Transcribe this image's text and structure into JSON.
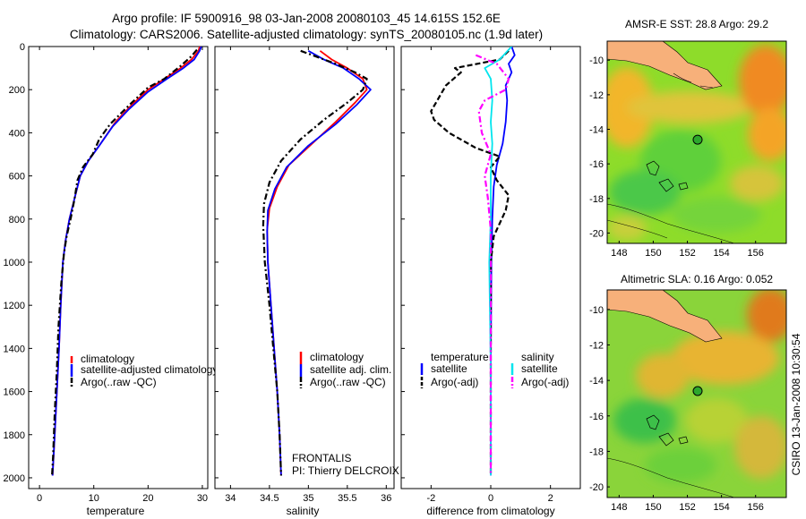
{
  "header": {
    "line1": "Argo profile: IF 5900916_98 03-Jan-2008 20080103_45 14.615S 152.6E",
    "line2": "Climatology: CARS2006. Satellite-adjusted climatology: synTS_20080105.nc (1.9d later)"
  },
  "credit": {
    "project": "FRONTALIS",
    "pi": "PI: Thierry DELCROIX",
    "stamp": "CSIRO 13-Jan-2008 10:30:54"
  },
  "colors": {
    "climatology": "#ff0000",
    "satellite": "#0000ff",
    "argo": "#000000",
    "salinity_satellite": "#00e5ee",
    "salinity_argo": "#ff00ff",
    "land": "#f7b07a"
  },
  "chart_data": [
    {
      "type": "line",
      "id": "temperature",
      "xlabel": "temperature",
      "ylabel": "",
      "xlim": [
        -2,
        31
      ],
      "ylim": [
        2050,
        0
      ],
      "xticks": [
        "0",
        "10",
        "20",
        "30"
      ],
      "yticks": [
        "0",
        "200",
        "400",
        "600",
        "800",
        "1000",
        "1200",
        "1400",
        "1600",
        "1800",
        "2000"
      ],
      "legend_position": "lower-center",
      "legend": [
        "climatology",
        "satellite-adjusted climatology",
        "Argo(..raw -QC)"
      ],
      "series": [
        {
          "name": "climatology",
          "color": "#ff0000",
          "dash": "solid",
          "points": [
            [
              29.5,
              0
            ],
            [
              29.3,
              20
            ],
            [
              28,
              60
            ],
            [
              26,
              100
            ],
            [
              23,
              150
            ],
            [
              20,
              200
            ],
            [
              17,
              270
            ],
            [
              14,
              350
            ],
            [
              11,
              460
            ],
            [
              9,
              530
            ],
            [
              7.5,
              600
            ],
            [
              6.5,
              700
            ],
            [
              5.5,
              800
            ],
            [
              4.8,
              900
            ],
            [
              4.3,
              1000
            ],
            [
              3.9,
              1200
            ],
            [
              3.6,
              1400
            ],
            [
              3.2,
              1600
            ],
            [
              2.8,
              1800
            ],
            [
              2.4,
              1990
            ]
          ]
        },
        {
          "name": "satellite-adjusted climatology",
          "color": "#0000ff",
          "dash": "solid",
          "points": [
            [
              29.8,
              0
            ],
            [
              29.5,
              20
            ],
            [
              28.5,
              60
            ],
            [
              26.5,
              100
            ],
            [
              23.5,
              150
            ],
            [
              20,
              210
            ],
            [
              16.5,
              290
            ],
            [
              13.5,
              370
            ],
            [
              11,
              460
            ],
            [
              9,
              530
            ],
            [
              7.5,
              600
            ],
            [
              6.5,
              700
            ],
            [
              5.5,
              800
            ],
            [
              4.8,
              900
            ],
            [
              4.3,
              1000
            ],
            [
              3.9,
              1200
            ],
            [
              3.6,
              1400
            ],
            [
              3.2,
              1600
            ],
            [
              2.8,
              1800
            ],
            [
              2.4,
              1990
            ]
          ]
        },
        {
          "name": "Argo(..raw -QC)",
          "color": "#000000",
          "dash": "dashdot",
          "points": [
            [
              29,
              15
            ],
            [
              28,
              45
            ],
            [
              26,
              90
            ],
            [
              23,
              150
            ],
            [
              20,
              190
            ],
            [
              17,
              260
            ],
            [
              15,
              310
            ],
            [
              13,
              360
            ],
            [
              11,
              430
            ],
            [
              9.8,
              500
            ],
            [
              8,
              560
            ],
            [
              7,
              620
            ],
            [
              6.5,
              700
            ],
            [
              5.8,
              790
            ],
            [
              5,
              880
            ],
            [
              4.5,
              960
            ],
            [
              4,
              1100
            ],
            [
              3.5,
              1300
            ],
            [
              3.2,
              1500
            ],
            [
              2.8,
              1700
            ],
            [
              2.5,
              1900
            ],
            [
              2.3,
              1990
            ]
          ]
        }
      ]
    },
    {
      "type": "line",
      "id": "salinity",
      "xlabel": "salinity",
      "ylabel": "",
      "xlim": [
        33.8,
        36.1
      ],
      "ylim": [
        2050,
        0
      ],
      "xticks": [
        "34",
        "34.5",
        "35",
        "35.5",
        "36"
      ],
      "legend_position": "lower-right",
      "legend": [
        "climatology",
        "satellite adj. clim.",
        "Argo(..raw -QC)"
      ],
      "series": [
        {
          "name": "climatology",
          "color": "#ff0000",
          "dash": "solid",
          "points": [
            [
              35.15,
              20
            ],
            [
              35.3,
              60
            ],
            [
              35.5,
              100
            ],
            [
              35.7,
              150
            ],
            [
              35.75,
              200
            ],
            [
              35.6,
              260
            ],
            [
              35.35,
              350
            ],
            [
              35.05,
              450
            ],
            [
              34.75,
              550
            ],
            [
              34.6,
              650
            ],
            [
              34.5,
              750
            ],
            [
              34.47,
              850
            ],
            [
              34.48,
              1000
            ],
            [
              34.52,
              1200
            ],
            [
              34.56,
              1400
            ],
            [
              34.6,
              1600
            ],
            [
              34.63,
              1800
            ],
            [
              34.65,
              1990
            ]
          ]
        },
        {
          "name": "satellite adj. clim.",
          "color": "#0000ff",
          "dash": "solid",
          "points": [
            [
              35.0,
              20
            ],
            [
              35.2,
              60
            ],
            [
              35.45,
              100
            ],
            [
              35.65,
              150
            ],
            [
              35.8,
              200
            ],
            [
              35.62,
              270
            ],
            [
              35.35,
              360
            ],
            [
              35.0,
              460
            ],
            [
              34.72,
              560
            ],
            [
              34.57,
              660
            ],
            [
              34.48,
              760
            ],
            [
              34.47,
              860
            ],
            [
              34.48,
              1000
            ],
            [
              34.52,
              1200
            ],
            [
              34.56,
              1400
            ],
            [
              34.6,
              1600
            ],
            [
              34.63,
              1800
            ],
            [
              34.65,
              1990
            ]
          ]
        },
        {
          "name": "Argo(..raw -QC)",
          "color": "#000000",
          "dash": "dashdot",
          "points": [
            [
              34.9,
              20
            ],
            [
              35.05,
              40
            ],
            [
              35.35,
              80
            ],
            [
              35.6,
              120
            ],
            [
              35.75,
              150
            ],
            [
              35.7,
              200
            ],
            [
              35.5,
              260
            ],
            [
              35.2,
              340
            ],
            [
              34.9,
              430
            ],
            [
              34.65,
              530
            ],
            [
              34.5,
              630
            ],
            [
              34.43,
              730
            ],
            [
              34.42,
              830
            ],
            [
              34.44,
              1000
            ],
            [
              34.5,
              1200
            ],
            [
              34.55,
              1400
            ],
            [
              34.6,
              1600
            ],
            [
              34.63,
              1800
            ],
            [
              34.65,
              1990
            ]
          ]
        }
      ]
    },
    {
      "type": "line",
      "id": "difference",
      "xlabel": "difference from climatology",
      "ylabel": "",
      "xlim": [
        -3,
        3
      ],
      "ylim": [
        2050,
        0
      ],
      "xticks": [
        "-2",
        "0",
        "2"
      ],
      "legend_position": "lower-center",
      "legend_groups": [
        "temperature",
        "salinity"
      ],
      "legend": [
        "satellite",
        "Argo(-adj)",
        "satellite",
        "Argo(-adj)"
      ],
      "series": [
        {
          "name": "satellite",
          "group": "temperature",
          "color": "#0000ff",
          "dash": "solid",
          "points": [
            [
              0.7,
              0
            ],
            [
              0.8,
              40
            ],
            [
              0.6,
              80
            ],
            [
              0.7,
              120
            ],
            [
              0.5,
              180
            ],
            [
              0.55,
              250
            ],
            [
              0.5,
              350
            ],
            [
              0.4,
              450
            ],
            [
              0.2,
              550
            ],
            [
              0.1,
              650
            ],
            [
              0.05,
              800
            ],
            [
              0.02,
              1000
            ],
            [
              0.0,
              1500
            ],
            [
              0.0,
              1990
            ]
          ]
        },
        {
          "name": "Argo(-adj)",
          "group": "temperature",
          "color": "#000000",
          "dash": "dashed",
          "points": [
            [
              0.6,
              20
            ],
            [
              0.3,
              60
            ],
            [
              -1.2,
              100
            ],
            [
              -1.0,
              120
            ],
            [
              -1.5,
              180
            ],
            [
              -2.0,
              300
            ],
            [
              -1.9,
              340
            ],
            [
              -1.4,
              400
            ],
            [
              -0.5,
              470
            ],
            [
              0.3,
              510
            ],
            [
              0.0,
              560
            ],
            [
              0.2,
              620
            ],
            [
              0.6,
              690
            ],
            [
              0.5,
              760
            ],
            [
              0.1,
              880
            ],
            [
              0.0,
              1000
            ],
            [
              0.0,
              1500
            ],
            [
              0.0,
              1990
            ]
          ]
        },
        {
          "name": "satellite",
          "group": "salinity",
          "color": "#00e5ee",
          "dash": "solid",
          "points": [
            [
              0.7,
              0
            ],
            [
              0.3,
              60
            ],
            [
              -0.2,
              100
            ],
            [
              0.0,
              150
            ],
            [
              0.05,
              250
            ],
            [
              0.0,
              350
            ],
            [
              0.05,
              450
            ],
            [
              0.0,
              600
            ],
            [
              0.0,
              800
            ],
            [
              -0.05,
              1000
            ],
            [
              0.0,
              1500
            ],
            [
              0.0,
              1990
            ]
          ]
        },
        {
          "name": "Argo(-adj)",
          "group": "salinity",
          "color": "#ff00ff",
          "dash": "dashdot",
          "points": [
            [
              -0.5,
              40
            ],
            [
              0.2,
              80
            ],
            [
              0.6,
              150
            ],
            [
              0.5,
              200
            ],
            [
              -0.2,
              250
            ],
            [
              -0.4,
              300
            ],
            [
              -0.3,
              400
            ],
            [
              0.0,
              500
            ],
            [
              -0.2,
              600
            ],
            [
              -0.1,
              700
            ],
            [
              0.0,
              850
            ],
            [
              0.0,
              1000
            ],
            [
              0.0,
              1500
            ],
            [
              0.0,
              1990
            ]
          ]
        }
      ]
    },
    {
      "type": "heatmap",
      "id": "sst",
      "title": "AMSR-E SST: 28.8 Argo: 29.2",
      "xlim": [
        147.3,
        157.8
      ],
      "ylim": [
        -20.6,
        -8.9
      ],
      "xticks": [
        "148",
        "150",
        "152",
        "154",
        "156"
      ],
      "yticks": [
        "-10",
        "-12",
        "-14",
        "-16",
        "-18",
        "-20"
      ],
      "marker": {
        "lon": 152.6,
        "lat": -14.6
      }
    },
    {
      "type": "heatmap",
      "id": "sla",
      "title": "Altimetric SLA: 0.16 Argo: 0.052",
      "xlim": [
        147.3,
        157.8
      ],
      "ylim": [
        -20.6,
        -8.9
      ],
      "xticks": [
        "148",
        "150",
        "152",
        "154",
        "156"
      ],
      "yticks": [
        "-10",
        "-12",
        "-14",
        "-16",
        "-18",
        "-20"
      ],
      "marker": {
        "lon": 152.6,
        "lat": -14.6
      }
    }
  ]
}
